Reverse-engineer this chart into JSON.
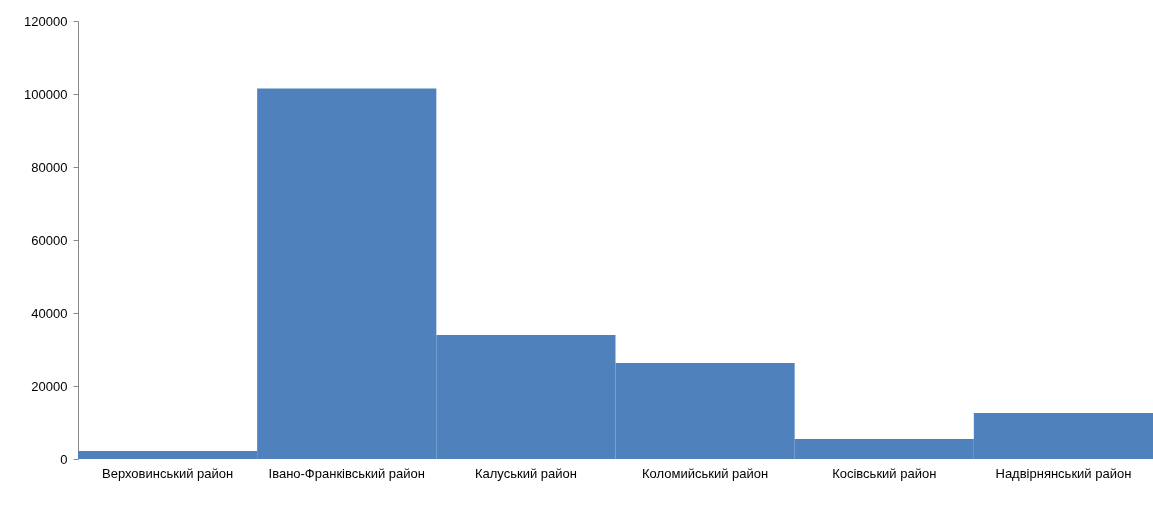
{
  "chart_data": {
    "type": "bar",
    "categories": [
      "Верховинський район",
      "Івано-Франківський район",
      "Калуський район",
      "Коломийський район",
      "Косівський район",
      "Надвірнянський  район"
    ],
    "values": [
      2200,
      101500,
      34000,
      26300,
      5500,
      12600
    ],
    "color": "#4f81bd",
    "ylim": [
      0,
      120000
    ],
    "yticks": [
      0,
      20000,
      40000,
      60000,
      80000,
      100000,
      120000
    ],
    "grid": false
  }
}
